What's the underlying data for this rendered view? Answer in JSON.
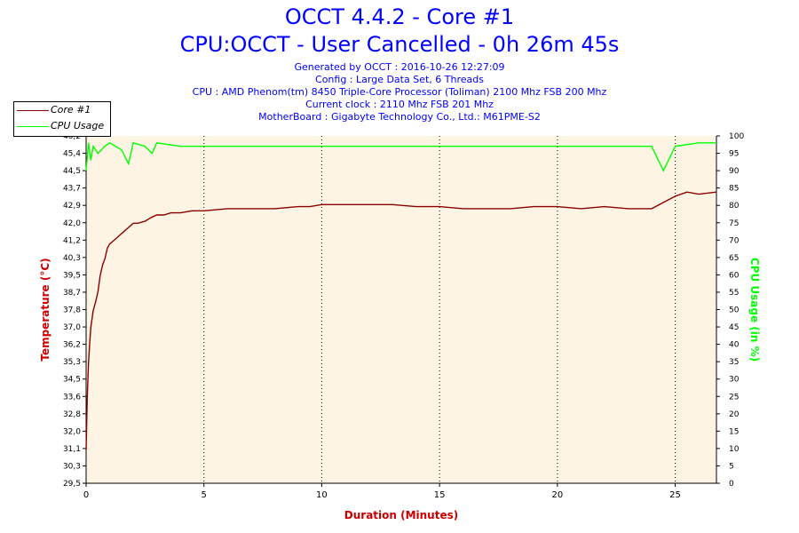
{
  "header": {
    "title_line1": "OCCT 4.4.2 - Core #1",
    "title_line2": "CPU:OCCT - User Cancelled - 0h 26m 45s",
    "generated": "Generated by OCCT : 2016-10-26 12:27:09",
    "config": "Config : Large Data Set, 6 Threads",
    "cpu": "CPU : AMD Phenom(tm) 8450 Triple-Core Processor (Toliman) 2100 Mhz FSB 200 Mhz",
    "clock": "Current clock : 2110 Mhz FSB 201 Mhz",
    "motherboard": "MotherBoard : Gigabyte Technology Co., Ltd.: M61PME-S2"
  },
  "legend": {
    "items": [
      {
        "label": "Core #1",
        "color": "#8b0000"
      },
      {
        "label": "CPU Usage",
        "color": "#00ff00"
      }
    ]
  },
  "colors": {
    "plot_bg": "#fdf4e3",
    "grid": "#000000",
    "temp": "#8b0000",
    "usage": "#00ff00",
    "title": "#0000ff",
    "axis_label": "#cc0000"
  },
  "chart_data": {
    "type": "line",
    "xlabel": "Duration (Minutes)",
    "ylabel_left": "Temperature (°C)",
    "ylabel_right": "CPU Usage (in %)",
    "xlim": [
      0,
      26.75
    ],
    "ylim_left": [
      29.5,
      46.2
    ],
    "ylim_right": [
      0,
      100
    ],
    "x_ticks": [
      "0",
      "5",
      "10",
      "15",
      "20",
      "25"
    ],
    "y_left_ticks": [
      "29,5",
      "30,3",
      "31,1",
      "32,0",
      "32,8",
      "33,6",
      "34,5",
      "35,3",
      "36,2",
      "37,0",
      "37,8",
      "38,7",
      "39,5",
      "40,3",
      "41,2",
      "42,0",
      "42,9",
      "43,7",
      "44,5",
      "45,4",
      "46,2"
    ],
    "y_right_ticks": [
      "0",
      "5",
      "10",
      "15",
      "20",
      "25",
      "30",
      "35",
      "40",
      "45",
      "50",
      "55",
      "60",
      "65",
      "70",
      "75",
      "80",
      "85",
      "90",
      "95",
      "100"
    ],
    "grid": true,
    "legend_position": "top-left",
    "series": [
      {
        "name": "Core #1",
        "axis": "left",
        "x": [
          0,
          0.05,
          0.1,
          0.15,
          0.2,
          0.3,
          0.4,
          0.5,
          0.6,
          0.7,
          0.8,
          0.9,
          1.0,
          1.2,
          1.4,
          1.6,
          1.8,
          2.0,
          2.2,
          2.5,
          2.8,
          3.0,
          3.3,
          3.6,
          4.0,
          4.5,
          5.0,
          6.0,
          7.0,
          8.0,
          9.0,
          9.5,
          10.0,
          11.0,
          12.0,
          13.0,
          14.0,
          15.0,
          16.0,
          17.0,
          18.0,
          19.0,
          20.0,
          21.0,
          22.0,
          23.0,
          24.0,
          24.5,
          25.0,
          25.5,
          26.0,
          26.75
        ],
        "values": [
          31.1,
          33.6,
          35.3,
          36.2,
          37.0,
          37.8,
          38.2,
          38.7,
          39.5,
          40.0,
          40.3,
          40.8,
          41.0,
          41.2,
          41.4,
          41.6,
          41.8,
          42.0,
          42.0,
          42.1,
          42.3,
          42.4,
          42.4,
          42.5,
          42.5,
          42.6,
          42.6,
          42.7,
          42.7,
          42.7,
          42.8,
          42.8,
          42.9,
          42.9,
          42.9,
          42.9,
          42.8,
          42.8,
          42.7,
          42.7,
          42.7,
          42.8,
          42.8,
          42.7,
          42.8,
          42.7,
          42.7,
          43.0,
          43.3,
          43.5,
          43.4,
          43.5
        ]
      },
      {
        "name": "CPU Usage",
        "axis": "right",
        "x": [
          0,
          0.1,
          0.2,
          0.3,
          0.5,
          0.8,
          1.0,
          1.5,
          1.8,
          2.0,
          2.5,
          2.8,
          3.0,
          4.0,
          5.0,
          6.0,
          8.0,
          10.0,
          12.0,
          14.0,
          15.0,
          16.0,
          18.0,
          20.0,
          22.0,
          24.0,
          24.5,
          25.0,
          26.0,
          26.75
        ],
        "values": [
          90,
          98,
          93,
          97,
          95,
          97,
          98,
          96,
          92,
          98,
          97,
          95,
          98,
          97,
          97,
          97,
          97,
          97,
          97,
          97,
          97,
          97,
          97,
          97,
          97,
          97,
          90,
          97,
          98,
          98
        ]
      }
    ]
  }
}
